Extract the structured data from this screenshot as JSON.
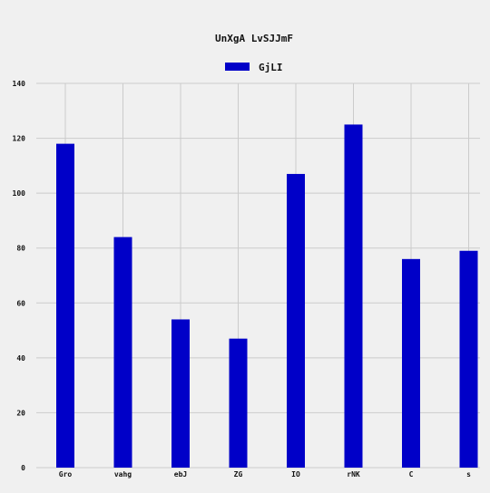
{
  "chart_data": {
    "type": "bar",
    "title": "UnXgA LvSJJmF",
    "xlabel": "",
    "ylabel": "",
    "categories": [
      "Gro",
      "vahg",
      "ebJ",
      "ZG",
      "IO",
      "rNK",
      "C",
      "s"
    ],
    "series": [
      {
        "name": "GjLI",
        "color": "#0000c8",
        "values": [
          118,
          84,
          54,
          47,
          107,
          125,
          76,
          79
        ]
      }
    ],
    "ylim": [
      0,
      140
    ],
    "yticks": [
      0,
      20,
      40,
      60,
      80,
      100,
      120,
      140
    ],
    "grid": true,
    "legend_position": "top-center"
  }
}
